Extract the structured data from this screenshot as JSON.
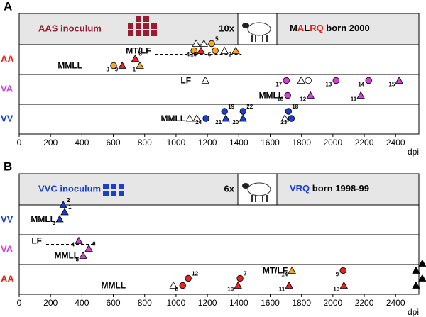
{
  "chart_data": [
    {
      "type": "scatter",
      "panel": "A",
      "xlabel": "dpi",
      "xlim": [
        0,
        2580
      ],
      "xticks": [
        0,
        200,
        400,
        600,
        800,
        1000,
        1200,
        1400,
        1600,
        1800,
        2000,
        2200,
        2400
      ],
      "banner": {
        "inoculum": "AAS inoculum",
        "inoculum_color": "#9b1b30",
        "count": "10x",
        "genotype": [
          {
            "text": "M",
            "color": "#000000"
          },
          {
            "text": "A",
            "color": "#e8231e"
          },
          {
            "text": "L",
            "color": "#000000"
          },
          {
            "text": "RQ",
            "color": "#e8231e"
          },
          {
            "text": " born 2000",
            "color": "#000000"
          }
        ]
      },
      "rows": [
        {
          "name": "AA",
          "color": "#e8231e",
          "groups": [
            {
              "label": "MT/LF",
              "line": [
                867,
                1418
              ],
              "points": [
                {
                  "x": 1114,
                  "shape": "circle",
                  "color": "#f5a623",
                  "label": 4
                },
                {
                  "x": 1159,
                  "shape": "triangle",
                  "color": "#e8231e",
                  "label": 10
                },
                {
                  "x": 1250,
                  "shape": "circle",
                  "color": "#f5a623",
                  "label": 6
                },
                {
                  "x": 1381,
                  "shape": "triangle",
                  "color": "#f5a623",
                  "label": 2
                },
                {
                  "x": 1128,
                  "shape": "triangle",
                  "color": "#ffffff"
                },
                {
                  "x": 1178,
                  "shape": "triangle",
                  "color": "#ffffff"
                },
                {
                  "x": 1227,
                  "shape": "circle",
                  "color": "#f5a623",
                  "label": 5
                },
                {
                  "x": 1309,
                  "shape": "triangle",
                  "color": "#ffffff"
                }
              ]
            },
            {
              "label": "MMLL",
              "line": [
                430,
                867
              ],
              "points": [
                {
                  "x": 602,
                  "shape": "circle",
                  "color": "#f5a623",
                  "label": 3
                },
                {
                  "x": 657,
                  "shape": "triangle",
                  "color": "#e8231e",
                  "label": 9
                },
                {
                  "x": 770,
                  "shape": "triangle",
                  "color": "#f5a623",
                  "label": 1
                },
                {
                  "x": 740,
                  "shape": "triangle",
                  "color": "#e8231e",
                  "label": 8
                }
              ]
            }
          ]
        },
        {
          "name": "VA",
          "color": "#d63fd6",
          "groups": [
            {
              "label": "LF",
              "line": [
                1123,
                2460
              ],
              "points": [
                {
                  "x": 1187,
                  "shape": "triangle",
                  "color": "#ffffff"
                },
                {
                  "x": 1703,
                  "shape": "circle",
                  "color": "#d63fd6",
                  "label": 17
                },
                {
                  "x": 1798,
                  "shape": "triangle",
                  "color": "#ffffff"
                },
                {
                  "x": 1843,
                  "shape": "circle",
                  "color": "#ffffff"
                },
                {
                  "x": 2020,
                  "shape": "circle",
                  "color": "#d63fd6",
                  "label": 13
                },
                {
                  "x": 2228,
                  "shape": "circle",
                  "color": "#d63fd6",
                  "label": 14
                },
                {
                  "x": 2423,
                  "shape": "triangle",
                  "color": "#d63fd6",
                  "label": 15
                }
              ]
            },
            {
              "label": "MMLL",
              "points": [
                {
                  "x": 1712,
                  "shape": "circle",
                  "color": "#d63fd6",
                  "label": 16
                },
                {
                  "x": 1857,
                  "shape": "triangle",
                  "color": "#d63fd6",
                  "label": 12
                },
                {
                  "x": 2178,
                  "shape": "triangle",
                  "color": "#d63fd6",
                  "label": 11
                }
              ]
            }
          ]
        },
        {
          "name": "VV",
          "color": "#1a3fcc",
          "groups": [
            {
              "label": "MMLL",
              "points": [
                {
                  "x": 1087,
                  "shape": "triangle",
                  "color": "#ffffff"
                },
                {
                  "x": 1132,
                  "shape": "triangle",
                  "color": "#ffffff"
                },
                {
                  "x": 1191,
                  "shape": "circle",
                  "color": "#1a3fcc",
                  "label": 24
                },
                {
                  "x": 1318,
                  "shape": "triangle",
                  "color": "#1a3fcc",
                  "label": 21
                },
                {
                  "x": 1309,
                  "shape": "circle",
                  "color": "#1a3fcc",
                  "label": 19
                },
                {
                  "x": 1427,
                  "shape": "triangle",
                  "color": "#1a3fcc",
                  "label": 20
                },
                {
                  "x": 1427,
                  "shape": "circle",
                  "color": "#1a3fcc",
                  "label": 22
                },
                {
                  "x": 1694,
                  "shape": "triangle",
                  "color": "#ffffff"
                },
                {
                  "x": 1735,
                  "shape": "circle",
                  "color": "#1a3fcc",
                  "label": 23
                },
                {
                  "x": 1717,
                  "shape": "circle",
                  "color": "#1a3fcc",
                  "label": 18
                }
              ]
            }
          ]
        }
      ]
    },
    {
      "type": "scatter",
      "panel": "B",
      "xlabel": "dpi",
      "xlim": [
        0,
        2580
      ],
      "xticks": [
        0,
        200,
        400,
        600,
        800,
        1000,
        1200,
        1400,
        1600,
        1800,
        2000,
        2200,
        2400
      ],
      "banner": {
        "inoculum": "VVC inoculum",
        "inoculum_color": "#1a3fcc",
        "count": "6x",
        "genotype": [
          {
            "text": "VRQ",
            "color": "#1a3fcc"
          },
          {
            "text": " born 1998-99",
            "color": "#000000"
          }
        ]
      },
      "rows": [
        {
          "name": "VV",
          "color": "#1a3fcc",
          "groups": [
            {
              "label": "MMLL",
              "points": [
                {
                  "x": 258,
                  "shape": "triangle",
                  "color": "#1a3fcc",
                  "label": 3
                },
                {
                  "x": 290,
                  "shape": "triangle",
                  "color": "#1a3fcc",
                  "label": 1
                },
                {
                  "x": 281,
                  "shape": "triangle",
                  "color": "#1a3fcc",
                  "label": 2
                }
              ]
            }
          ]
        },
        {
          "name": "VA",
          "color": "#d63fd6",
          "groups": [
            {
              "label": "LF",
              "line": [
                172,
                489
              ],
              "points": [
                {
                  "x": 380,
                  "shape": "triangle",
                  "color": "#d63fd6",
                  "label": 4
                }
              ]
            },
            {
              "label": "MMLL",
              "points": [
                {
                  "x": 408,
                  "shape": "triangle",
                  "color": "#d63fd6",
                  "label": 5
                },
                {
                  "x": 444,
                  "shape": "triangle",
                  "color": "#d63fd6",
                  "label": 6
                }
              ]
            }
          ]
        },
        {
          "name": "AA",
          "color": "#e8231e",
          "groups": [
            {
              "label": "MT/LF",
              "points": [
                {
                  "x": 1739,
                  "shape": "triangle",
                  "color": "#f5a623",
                  "label": 14
                },
                {
                  "x": 2065,
                  "shape": "circle",
                  "color": "#e8231e",
                  "label": 9
                },
                {
                  "x": 2530,
                  "shape": "triangle",
                  "color": "#000000"
                },
                {
                  "x": 2570,
                  "shape": "triangle",
                  "color": "#000000"
                }
              ]
            },
            {
              "label": "MMLL",
              "line": [
                707,
                2530
              ],
              "points": [
                {
                  "x": 983,
                  "shape": "triangle",
                  "color": "#ffffff"
                },
                {
                  "x": 1042,
                  "shape": "circle",
                  "color": "#e8231e",
                  "label": 8
                },
                {
                  "x": 1078,
                  "shape": "circle",
                  "color": "#e8231e",
                  "label": 12
                },
                {
                  "x": 1395,
                  "shape": "triangle",
                  "color": "#e8231e",
                  "label": 10
                },
                {
                  "x": 1408,
                  "shape": "circle",
                  "color": "#e8231e",
                  "label": 7
                },
                {
                  "x": 1721,
                  "shape": "triangle",
                  "color": "#e8231e",
                  "label": 11
                },
                {
                  "x": 2070,
                  "shape": "triangle",
                  "color": "#e8231e",
                  "label": 13
                },
                {
                  "x": 2530,
                  "shape": "triangle",
                  "color": "#000000"
                },
                {
                  "x": 2570,
                  "shape": "triangle",
                  "color": "#000000"
                }
              ]
            }
          ]
        }
      ]
    }
  ]
}
